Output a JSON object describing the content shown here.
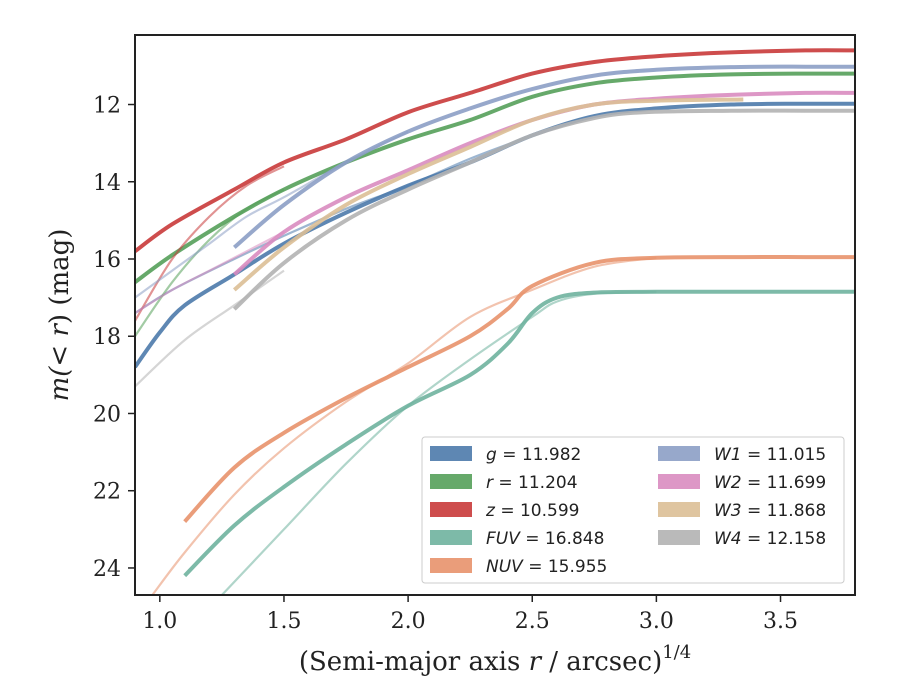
{
  "chart_data": {
    "type": "line",
    "xlabel_main": "(Semi-major axis ",
    "xlabel_var": "r",
    "xlabel_unit": " / arcsec)",
    "xlabel_sup": "1/4",
    "ylabel_pre": "m(",
    "ylabel_var": "< r",
    "ylabel_post": ") (mag)",
    "xlim": [
      0.9,
      3.8
    ],
    "ylim": [
      24.7,
      10.2
    ],
    "y_inverted": true,
    "xticks": [
      1.0,
      1.5,
      2.0,
      2.5,
      3.0,
      3.5
    ],
    "xtick_labels": [
      "1.0",
      "1.5",
      "2.0",
      "2.5",
      "3.0",
      "3.5"
    ],
    "yticks": [
      12,
      14,
      16,
      18,
      20,
      22,
      24
    ],
    "ytick_labels": [
      "12",
      "14",
      "16",
      "18",
      "20",
      "22",
      "24"
    ],
    "grid": false,
    "legend_position": "bottom-right",
    "series": [
      {
        "name": "g",
        "value": "11.982",
        "color": "#4c7aab",
        "band": true,
        "x": [
          0.9,
          1.0,
          1.1,
          1.3,
          1.5,
          1.75,
          2.0,
          2.25,
          2.5,
          2.75,
          3.0,
          3.3,
          3.6,
          3.8
        ],
        "y": [
          18.8,
          17.9,
          17.2,
          16.4,
          15.6,
          14.8,
          14.1,
          13.5,
          12.8,
          12.3,
          12.1,
          12.0,
          11.98,
          11.98
        ],
        "extra_lines": [
          {
            "x": [
              0.9,
              1.05,
              1.3,
              1.5,
              1.75,
              2.0,
              2.25,
              2.5
            ],
            "y": [
              17.4,
              16.8,
              16.0,
              15.4,
              14.7,
              14.1,
              13.4,
              12.8
            ]
          }
        ]
      },
      {
        "name": "r",
        "value": "11.204",
        "color": "#55a05a",
        "band": true,
        "x": [
          0.9,
          1.05,
          1.3,
          1.5,
          1.75,
          2.0,
          2.25,
          2.5,
          2.75,
          3.0,
          3.3,
          3.6,
          3.8
        ],
        "y": [
          16.6,
          15.9,
          14.9,
          14.2,
          13.5,
          12.9,
          12.4,
          11.8,
          11.45,
          11.3,
          11.22,
          11.2,
          11.2
        ],
        "extra_lines": [
          {
            "x": [
              0.9,
              1.05,
              1.2,
              1.35,
              1.5
            ],
            "y": [
              18.0,
              16.6,
              15.5,
              14.7,
              14.2
            ]
          }
        ]
      },
      {
        "name": "z",
        "value": "10.599",
        "color": "#c93a3a",
        "band": true,
        "x": [
          0.9,
          1.05,
          1.3,
          1.5,
          1.75,
          2.0,
          2.25,
          2.5,
          2.75,
          3.0,
          3.3,
          3.6,
          3.8
        ],
        "y": [
          15.8,
          15.1,
          14.2,
          13.5,
          12.9,
          12.2,
          11.7,
          11.2,
          10.9,
          10.75,
          10.65,
          10.6,
          10.6
        ],
        "extra_lines": [
          {
            "x": [
              0.9,
              1.05,
              1.2,
              1.35,
              1.5
            ],
            "y": [
              17.6,
              16.0,
              14.9,
              14.1,
              13.6
            ]
          }
        ]
      },
      {
        "name": "FUV",
        "value": "16.848",
        "color": "#6fb39f",
        "band": true,
        "x": [
          1.1,
          1.3,
          1.5,
          1.75,
          2.0,
          2.25,
          2.4,
          2.5,
          2.6,
          2.75,
          3.0,
          3.3,
          3.6,
          3.8
        ],
        "y": [
          24.2,
          22.9,
          21.9,
          20.8,
          19.8,
          19.0,
          18.2,
          17.4,
          17.0,
          16.87,
          16.85,
          16.85,
          16.85,
          16.85
        ],
        "extra_lines": [
          {
            "x": [
              1.25,
              1.5,
              1.75,
              2.0,
              2.25,
              2.5,
              2.6,
              2.75,
              3.0
            ],
            "y": [
              24.7,
              23.0,
              21.3,
              19.8,
              18.6,
              17.5,
              17.1,
              16.9,
              16.85
            ]
          }
        ]
      },
      {
        "name": "NUV",
        "value": "15.955",
        "color": "#e8926b",
        "band": true,
        "x": [
          1.1,
          1.3,
          1.5,
          1.75,
          2.0,
          2.25,
          2.4,
          2.5,
          2.75,
          3.0,
          3.35,
          3.6,
          3.8
        ],
        "y": [
          22.8,
          21.4,
          20.5,
          19.6,
          18.8,
          18.0,
          17.3,
          16.7,
          16.1,
          15.97,
          15.95,
          15.95,
          15.95
        ],
        "extra_lines": [
          {
            "x": [
              0.97,
              1.1,
              1.3,
              1.5,
              1.75,
              2.0,
              2.25,
              2.5,
              2.75,
              3.0
            ],
            "y": [
              24.7,
              23.6,
              22.1,
              20.9,
              19.7,
              18.7,
              17.5,
              16.8,
              16.2,
              15.97
            ]
          }
        ]
      },
      {
        "name": "W1",
        "value": "11.015",
        "color": "#8c9fc5",
        "band": true,
        "x": [
          1.3,
          1.5,
          1.75,
          2.0,
          2.25,
          2.5,
          2.75,
          3.0,
          3.3,
          3.6,
          3.8
        ],
        "y": [
          15.7,
          14.6,
          13.5,
          12.7,
          12.1,
          11.6,
          11.25,
          11.1,
          11.03,
          11.02,
          11.02
        ],
        "extra_lines": [
          {
            "x": [
              0.9,
              1.05,
              1.2,
              1.35,
              1.5,
              1.75,
              2.0
            ],
            "y": [
              17.0,
              16.3,
              15.6,
              14.9,
              14.4,
              13.5,
              12.7
            ]
          }
        ]
      },
      {
        "name": "W2",
        "value": "11.699",
        "color": "#d98cc0",
        "band": true,
        "x": [
          1.3,
          1.5,
          1.75,
          2.0,
          2.25,
          2.5,
          2.75,
          3.0,
          3.3,
          3.6,
          3.8
        ],
        "y": [
          16.4,
          15.3,
          14.4,
          13.7,
          13.0,
          12.4,
          12.0,
          11.85,
          11.75,
          11.7,
          11.7
        ],
        "extra_lines": [
          {
            "x": [
              0.9,
              1.05,
              1.2,
              1.35,
              1.5
            ],
            "y": [
              17.4,
              16.8,
              16.3,
              15.8,
              15.3
            ]
          }
        ]
      },
      {
        "name": "W3",
        "value": "11.868",
        "color": "#dcbf96",
        "band": true,
        "x": [
          1.3,
          1.5,
          1.75,
          2.0,
          2.25,
          2.5,
          2.75,
          3.0,
          3.35
        ],
        "y": [
          16.8,
          15.7,
          14.6,
          13.8,
          13.1,
          12.4,
          12.0,
          11.9,
          11.87
        ],
        "extra_lines": []
      },
      {
        "name": "W4",
        "value": "12.158",
        "color": "#b3b3b3",
        "band": true,
        "x": [
          1.3,
          1.5,
          1.75,
          2.0,
          2.25,
          2.5,
          2.75,
          2.95,
          3.3,
          3.6,
          3.8
        ],
        "y": [
          17.3,
          16.1,
          15.0,
          14.2,
          13.5,
          12.8,
          12.35,
          12.2,
          12.16,
          12.16,
          12.16
        ],
        "extra_lines": [
          {
            "x": [
              0.9,
              1.1,
              1.3,
              1.5
            ],
            "y": [
              19.3,
              18.1,
              17.2,
              16.3
            ]
          }
        ]
      }
    ]
  }
}
